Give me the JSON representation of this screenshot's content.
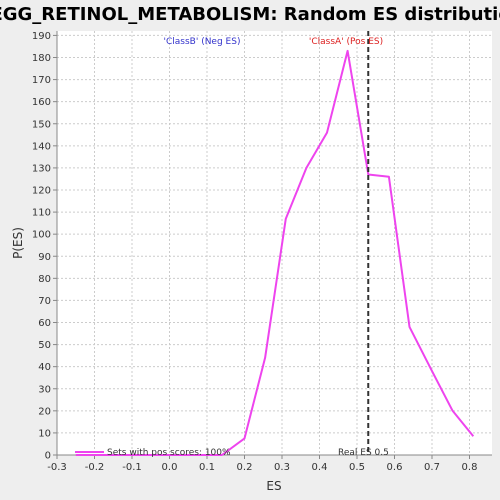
{
  "colors": {
    "series": "#ee44ee",
    "neg_label": "#3333cc",
    "pos_label": "#dd2222",
    "real_es_line": "#333333",
    "plot_bg": "#ffffff",
    "grid": "#cccccc"
  },
  "chart_data": {
    "type": "line",
    "title": "KEGG_RETINOL_METABOLISM: Random ES distribution",
    "xlabel": "ES",
    "ylabel": "P(ES)",
    "xlim": [
      -0.3,
      0.86
    ],
    "ylim": [
      0,
      192
    ],
    "x_ticks": [
      -0.3,
      -0.2,
      -0.1,
      0.0,
      0.1,
      0.2,
      0.3,
      0.4,
      0.5,
      0.6,
      0.7,
      0.8
    ],
    "x_tick_labels": [
      "-0.3",
      "-0.2",
      "-0.1",
      "0.0",
      "0.1",
      "0.2",
      "0.3",
      "0.4",
      "0.5",
      "0.6",
      "0.7",
      "0.8"
    ],
    "y_ticks": [
      0,
      10,
      20,
      30,
      40,
      50,
      60,
      70,
      80,
      90,
      100,
      110,
      120,
      130,
      140,
      150,
      160,
      170,
      180,
      190
    ],
    "grid": true,
    "series": [
      {
        "name": "Sets with pos scores: 100%",
        "x": [
          -0.25,
          0.14,
          0.2,
          0.255,
          0.31,
          0.365,
          0.42,
          0.475,
          0.53,
          0.585,
          0.64,
          0.7,
          0.755,
          0.81
        ],
        "y": [
          0,
          0,
          7.5,
          44,
          107,
          130,
          146,
          183,
          127,
          126,
          58,
          38,
          20,
          8.5
        ]
      }
    ],
    "annotations": {
      "neg_label": "'ClassB' (Neg ES)",
      "pos_label": "'ClassA' (Pos ES)",
      "real_es_label": "Real ES 0.5",
      "real_es_x": 0.53
    },
    "legend": {
      "placement": "bottom-left",
      "label": "Sets with pos scores: 100%"
    }
  }
}
